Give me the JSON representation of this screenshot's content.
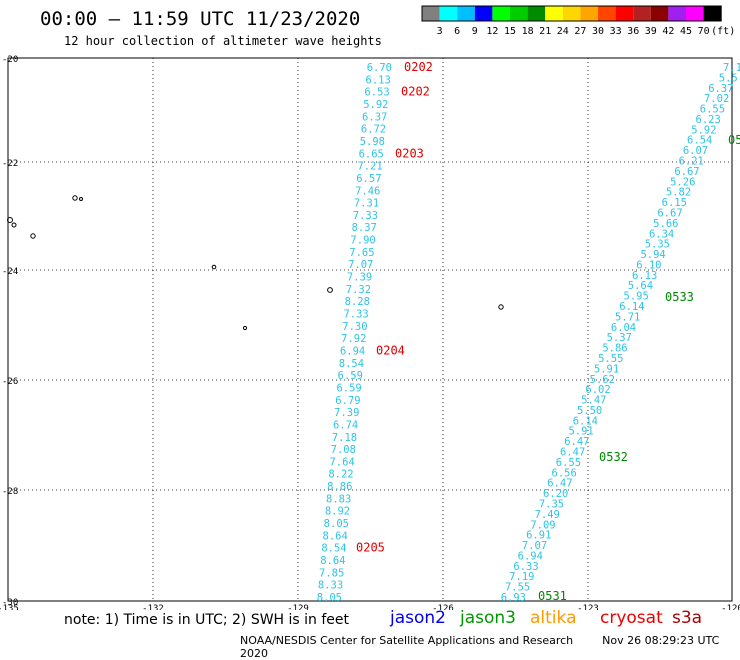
{
  "header": {
    "title": "00:00 — 11:59 UTC 11/23/2020",
    "subtitle": "12 hour collection of altimeter wave heights"
  },
  "colorbar": {
    "unit": "(ft)",
    "ticks": [
      "3",
      "6",
      "9",
      "12",
      "15",
      "18",
      "21",
      "24",
      "27",
      "30",
      "33",
      "36",
      "39",
      "42",
      "45",
      "70"
    ],
    "colors": [
      "#808080",
      "#00ffff",
      "#00bfff",
      "#0000ff",
      "#00ff00",
      "#00cd00",
      "#008b00",
      "#ffff00",
      "#ffd700",
      "#ffa500",
      "#ff4500",
      "#ff0000",
      "#b22222",
      "#8b0000",
      "#a020f0",
      "#ff00ff",
      "#000000"
    ]
  },
  "map": {
    "lat_ticks": [
      "-20",
      "-22",
      "-24",
      "-26",
      "-28",
      "-30"
    ],
    "lon_ticks": [
      "-135",
      "-132",
      "-129",
      "-126",
      "-123",
      "-120"
    ],
    "track_color": "#2ec4e6",
    "track1": {
      "values": [
        "6.70",
        "6.13",
        "6.53",
        "5.92",
        "6.37",
        "6.72",
        "5.98",
        "6.65",
        "7.21",
        "6.57",
        "7.46",
        "7.31",
        "7.33",
        "8.37",
        "7.90",
        "7.65",
        "7.07",
        "7.39",
        "7.32",
        "8.28",
        "7.33",
        "7.30",
        "7.92",
        "6.94",
        "8.54",
        "6.59",
        "6.59",
        "6.79",
        "7.39",
        "6.74",
        "7.18",
        "7.08",
        "7.64",
        "8.22",
        "8.86",
        "8.83",
        "8.92",
        "8.05",
        "8.64",
        "8.54",
        "8.64",
        "7.85",
        "8.33",
        "8.05"
      ],
      "times": [
        {
          "label": "0202",
          "value_index": 0
        },
        {
          "label": "0202",
          "value_index": 2
        },
        {
          "label": "0203",
          "value_index": 7
        },
        {
          "label": "0204",
          "value_index": 23
        },
        {
          "label": "0205",
          "value_index": 39
        }
      ]
    },
    "track2": {
      "values": [
        "7.1",
        "5.5",
        "6.37",
        "7.02",
        "6.55",
        "6.23",
        "5.92",
        "6.54",
        "6.07",
        "6.21",
        "6.67",
        "5.26",
        "5.82",
        "6.15",
        "6.67",
        "5.66",
        "6.34",
        "5.35",
        "5.94",
        "6.10",
        "6.13",
        "5.64",
        "5.95",
        "6.14",
        "5.71",
        "6.04",
        "5.37",
        "5.86",
        "5.55",
        "5.91",
        "5.62",
        "6.02",
        "5.47",
        "5.50",
        "6.14",
        "5.91",
        "6.47",
        "6.47",
        "6.55",
        "6.56",
        "6.47",
        "6.20",
        "7.35",
        "7.49",
        "7.09",
        "6.91",
        "7.07",
        "6.94",
        "6.33",
        "7.19",
        "7.55",
        "6.93"
      ],
      "times": [
        {
          "label": "05",
          "value_index": 8
        },
        {
          "label": "0533",
          "value_index": 23
        },
        {
          "label": "0532",
          "value_index": 38
        },
        {
          "label": "0531",
          "value_index": 51
        }
      ]
    }
  },
  "footer": {
    "note": "note:  1) Time is in UTC;  2) SWH is in feet",
    "missions": [
      {
        "name": "jason2",
        "color": "#0000ee"
      },
      {
        "name": "jason3",
        "color": "#009900"
      },
      {
        "name": "altika",
        "color": "#ff9900"
      },
      {
        "name": "cryosat",
        "color": "#ee0000"
      },
      {
        "name": "s3a",
        "color": "#aa0000"
      }
    ],
    "credit": "NOAA/NESDIS Center for Satellite Applications and Research",
    "timestamp": "Nov 26 08:29:23 UTC 2020"
  }
}
